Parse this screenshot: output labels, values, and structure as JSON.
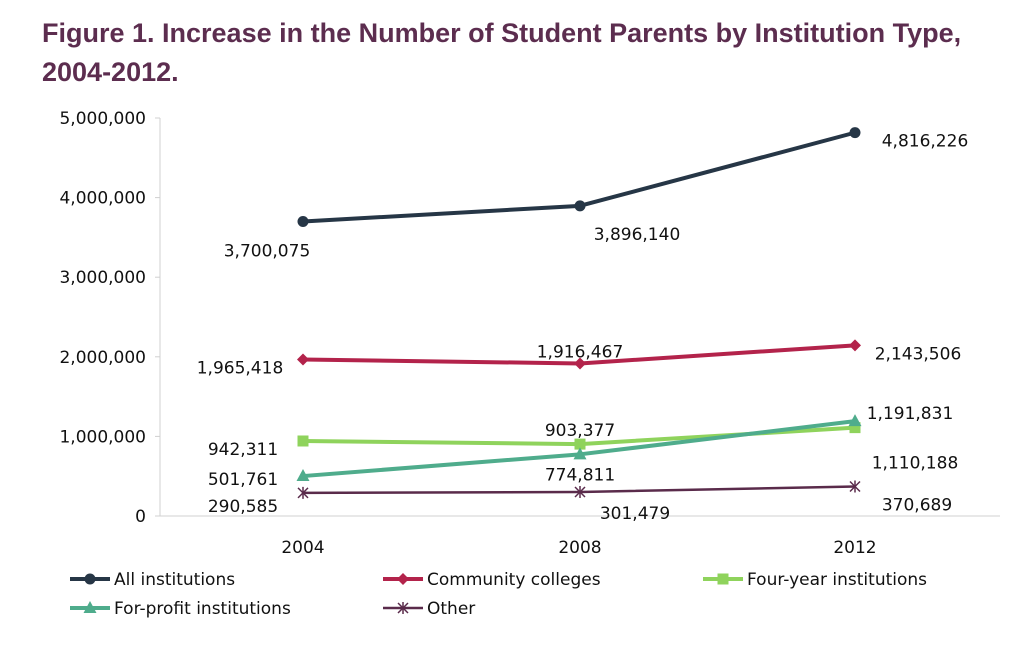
{
  "chart_data": {
    "type": "line",
    "title": "Figure 1. Increase in the Number of Student Parents by Institution Type, 2004-2012.",
    "xlabel": "",
    "ylabel": "",
    "categories": [
      "2004",
      "2008",
      "2012"
    ],
    "ylim": [
      0,
      5000000
    ],
    "yticks": [
      0,
      1000000,
      2000000,
      3000000,
      4000000,
      5000000
    ],
    "ytick_labels": [
      "0",
      "1,000,000",
      "2,000,000",
      "3,000,000",
      "4,000,000",
      "5,000,000"
    ],
    "grid": false,
    "legend_position": "bottom",
    "series": [
      {
        "name": "All institutions",
        "values": [
          3700075,
          3896140,
          4816226
        ],
        "labels": [
          "3,700,075",
          "3,896,140",
          "4,816,226"
        ],
        "color": "#263646",
        "marker": "circle"
      },
      {
        "name": "Community colleges",
        "values": [
          1965418,
          1916467,
          2143506
        ],
        "labels": [
          "1,965,418",
          "1,916,467",
          "2,143,506"
        ],
        "color": "#b3234b",
        "marker": "diamond"
      },
      {
        "name": "Four-year institutions",
        "values": [
          942311,
          903377,
          1110188
        ],
        "labels": [
          "942,311",
          "903,377",
          "1,110,188"
        ],
        "color": "#8fd35c",
        "marker": "square"
      },
      {
        "name": "For-profit institutions",
        "values": [
          501761,
          774811,
          1191831
        ],
        "labels": [
          "501,761",
          "774,811",
          "1,191,831"
        ],
        "color": "#4fac8c",
        "marker": "triangle"
      },
      {
        "name": "Other",
        "values": [
          290585,
          301479,
          370689
        ],
        "labels": [
          "290,585",
          "301,479",
          "370,689"
        ],
        "color": "#5a2b4b",
        "marker": "asterisk"
      }
    ]
  }
}
